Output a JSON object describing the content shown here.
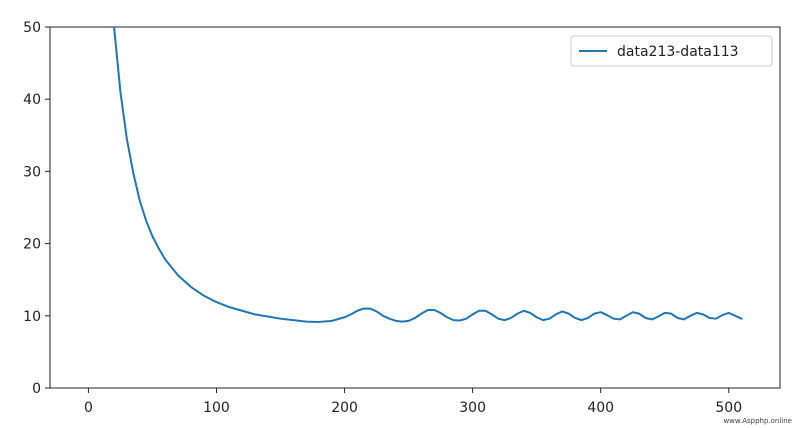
{
  "chart_data": {
    "type": "line",
    "title": "",
    "xlabel": "",
    "ylabel": "",
    "xlim": [
      -30,
      540
    ],
    "ylim": [
      0,
      50
    ],
    "x_ticks": [
      0,
      100,
      200,
      300,
      400,
      500
    ],
    "x_tick_labels": [
      "0",
      "100",
      "200",
      "300",
      "400",
      "500"
    ],
    "y_ticks": [
      0,
      10,
      20,
      30,
      40,
      50
    ],
    "y_tick_labels": [
      "0",
      "10",
      "20",
      "30",
      "40",
      "50"
    ],
    "grid": false,
    "legend_position": "top-right",
    "series": [
      {
        "name": "data213-data113",
        "color": "#1f77b4",
        "x": [
          20,
          25,
          30,
          35,
          40,
          45,
          50,
          55,
          60,
          70,
          80,
          90,
          100,
          110,
          120,
          130,
          140,
          150,
          160,
          170,
          180,
          190,
          200,
          205,
          210,
          215,
          220,
          225,
          230,
          235,
          240,
          245,
          250,
          255,
          260,
          265,
          270,
          275,
          280,
          285,
          290,
          295,
          300,
          305,
          310,
          315,
          320,
          325,
          330,
          335,
          340,
          345,
          350,
          355,
          360,
          365,
          370,
          375,
          380,
          385,
          390,
          395,
          400,
          405,
          410,
          415,
          420,
          425,
          430,
          435,
          440,
          445,
          450,
          455,
          460,
          465,
          470,
          475,
          480,
          485,
          490,
          495,
          500,
          505,
          510
        ],
        "y": [
          50,
          41,
          34.5,
          29.8,
          26,
          23.2,
          21,
          19.3,
          17.8,
          15.6,
          14,
          12.8,
          11.9,
          11.2,
          10.7,
          10.2,
          9.9,
          9.6,
          9.4,
          9.2,
          9.15,
          9.3,
          9.8,
          10.2,
          10.7,
          11,
          11,
          10.6,
          10,
          9.6,
          9.3,
          9.2,
          9.3,
          9.7,
          10.3,
          10.8,
          10.8,
          10.4,
          9.8,
          9.4,
          9.35,
          9.6,
          10.2,
          10.7,
          10.7,
          10.2,
          9.6,
          9.4,
          9.7,
          10.3,
          10.7,
          10.4,
          9.8,
          9.4,
          9.6,
          10.2,
          10.6,
          10.3,
          9.7,
          9.4,
          9.7,
          10.3,
          10.5,
          10.1,
          9.6,
          9.5,
          10,
          10.5,
          10.3,
          9.7,
          9.5,
          9.9,
          10.4,
          10.3,
          9.7,
          9.5,
          10,
          10.4,
          10.2,
          9.7,
          9.6,
          10.1,
          10.4,
          10,
          9.6
        ]
      }
    ]
  },
  "watermark": "www.Aspphp.online"
}
